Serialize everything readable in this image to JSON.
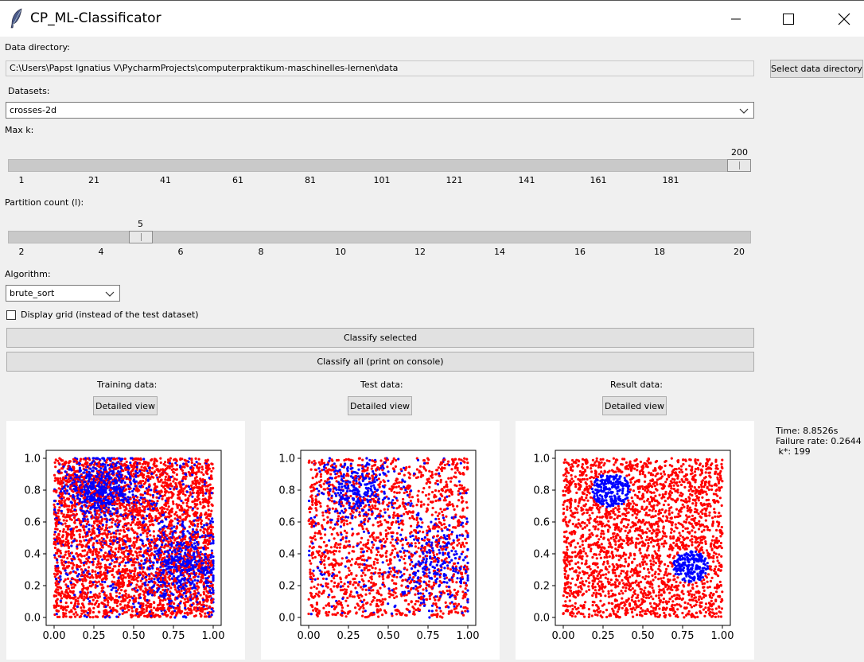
{
  "window": {
    "title": "CP_ML-Classificator",
    "icon": "feather-icon",
    "controls": [
      "minimize-icon",
      "maximize-icon",
      "close-icon"
    ]
  },
  "data_directory": {
    "label": "Data directory:",
    "value": "C:\\Users\\Papst Ignatius V\\PycharmProjects\\computerpraktikum-maschinelles-lernen\\data",
    "button": "Select data directory"
  },
  "datasets": {
    "label": "Datasets:",
    "selected": "crosses-2d"
  },
  "max_k": {
    "label": "Max k:",
    "value": "200",
    "min": 1,
    "max": 200,
    "current": 200,
    "ticks": [
      "1",
      "21",
      "41",
      "61",
      "81",
      "101",
      "121",
      "141",
      "161",
      "181"
    ]
  },
  "partition": {
    "label": "Partition count (l):",
    "value": "5",
    "min": 2,
    "max": 20,
    "current": 5,
    "ticks": [
      "2",
      "4",
      "6",
      "8",
      "10",
      "12",
      "14",
      "16",
      "18",
      "20"
    ]
  },
  "algorithm": {
    "label": "Algorithm:",
    "selected": "brute_sort"
  },
  "grid_option": {
    "label": "Display grid (instead of the test dataset)",
    "checked": false
  },
  "actions": {
    "classify_selected": "Classify selected",
    "classify_all": "Classify all (print on console)"
  },
  "panels": {
    "training": {
      "label": "Training data:",
      "button": "Detailed view"
    },
    "test": {
      "label": "Test data:",
      "button": "Detailed view"
    },
    "result": {
      "label": "Result data:",
      "button": "Detailed view"
    }
  },
  "stats": {
    "time": "Time: 8.8526s",
    "failure": "Failure rate: 0.2644",
    "kstar": " k*: 199"
  },
  "colors": {
    "class_a": "#ff0000",
    "class_b": "#0000ff"
  },
  "chart_data": [
    {
      "type": "scatter",
      "name_hint": "training",
      "xlim": [
        0,
        1
      ],
      "ylim": [
        0,
        1
      ],
      "xticks": [
        "0.00",
        "0.25",
        "0.50",
        "0.75",
        "1.00"
      ],
      "yticks": [
        "0.0",
        "0.2",
        "0.4",
        "0.6",
        "0.8",
        "1.0"
      ],
      "series": [
        {
          "color": "#ff0000",
          "distribution": "uniform over [0,1]x[0,1]"
        },
        {
          "color": "#0000ff",
          "distribution": "clusters near (0.3,0.8) and (0.8,0.35), plus scattered noise"
        }
      ]
    },
    {
      "type": "scatter",
      "name_hint": "test",
      "xlim": [
        0,
        1
      ],
      "ylim": [
        0,
        1
      ],
      "xticks": [
        "0.00",
        "0.25",
        "0.50",
        "0.75",
        "1.00"
      ],
      "yticks": [
        "0.0",
        "0.2",
        "0.4",
        "0.6",
        "0.8",
        "1.0"
      ],
      "series": [
        {
          "color": "#ff0000",
          "distribution": "uniform over [0,1]x[0,1]"
        },
        {
          "color": "#0000ff",
          "distribution": "clusters near (0.3,0.8) and (0.8,0.35), plus scattered noise"
        }
      ]
    },
    {
      "type": "scatter",
      "name_hint": "result",
      "xlim": [
        0,
        1
      ],
      "ylim": [
        0,
        1
      ],
      "xticks": [
        "0.00",
        "0.25",
        "0.50",
        "0.75",
        "1.00"
      ],
      "yticks": [
        "0.0",
        "0.2",
        "0.4",
        "0.6",
        "0.8",
        "1.0"
      ],
      "series": [
        {
          "color": "#ff0000",
          "distribution": "uniform over [0,1]x[0,1] excluding two discs"
        },
        {
          "color": "#0000ff",
          "distribution": "discs centered (0.3,0.8) r=0.12 and (0.8,0.32) r=0.11"
        }
      ]
    }
  ]
}
